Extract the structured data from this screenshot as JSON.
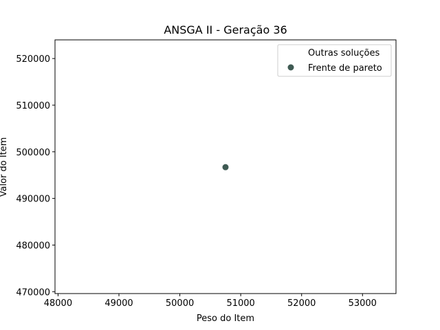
{
  "chart_data": {
    "type": "scatter",
    "title": "ANSGA II - Geração 36",
    "xlabel": "Peso do Item",
    "ylabel": "Valor do Item",
    "xlim": [
      47950,
      53550
    ],
    "ylim": [
      469600,
      524000
    ],
    "xticks": [
      48000,
      49000,
      50000,
      51000,
      52000,
      53000
    ],
    "yticks": [
      470000,
      480000,
      490000,
      500000,
      510000,
      520000
    ],
    "grid": false,
    "legend_position": "top-right",
    "series": [
      {
        "name": "Outras soluções",
        "color": "#ffffff",
        "points": []
      },
      {
        "name": "Frente de pareto",
        "color": "#3f5a53",
        "points": [
          {
            "x": 50750,
            "y": 496700
          }
        ]
      }
    ]
  }
}
